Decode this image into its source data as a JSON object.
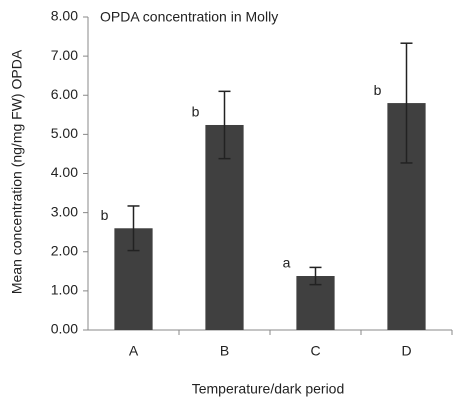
{
  "chart_data": {
    "type": "bar",
    "title": "OPDA concentration in Molly",
    "x_label": "Temperature/dark period",
    "y_label": "Mean concentration (ng/mg FW) OPDA",
    "categories": [
      "A",
      "B",
      "C",
      "D"
    ],
    "values": [
      2.6,
      5.24,
      1.38,
      5.8
    ],
    "errors": [
      0.57,
      0.86,
      0.22,
      1.53
    ],
    "annotations": [
      "b",
      "b",
      "a",
      "b"
    ],
    "color": "#404040",
    "ylim": [
      0,
      8
    ],
    "yticks": [
      {
        "value": 0,
        "label": "0.00"
      },
      {
        "value": 1,
        "label": "1.00"
      },
      {
        "value": 2,
        "label": "2.00"
      },
      {
        "value": 3,
        "label": "3.00"
      },
      {
        "value": 4,
        "label": "4.00"
      },
      {
        "value": 5,
        "label": "5.00"
      },
      {
        "value": 6,
        "label": "6.00"
      },
      {
        "value": 7,
        "label": "7.00"
      },
      {
        "value": 8,
        "label": "8.00"
      }
    ],
    "grid": false
  }
}
